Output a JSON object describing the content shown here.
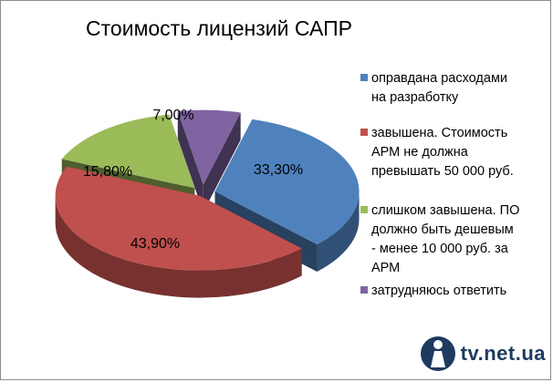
{
  "chart_data": {
    "type": "pie",
    "title": "Стоимость лицензий САПР",
    "categories": [
      "оправдана расходами на разработку",
      "завышена. Стоимость АРМ не должна превышать 50 000 руб.",
      "слишком завышена. ПО должно быть дешевым - менее 10 000 руб. за АРМ",
      "затрудняюсь ответить"
    ],
    "values": [
      33.3,
      43.9,
      15.8,
      7.0
    ],
    "value_labels": [
      "33,30%",
      "43,90%",
      "15,80%",
      "7,00%"
    ],
    "colors": [
      "#4f81bd",
      "#c0504d",
      "#9bbb59",
      "#8064a2"
    ],
    "legend_position": "right",
    "style": "3d-exploded"
  },
  "legend": {
    "lines": [
      [
        "оправдана расходами",
        "на разработку"
      ],
      [
        "завышена. Стоимость",
        "АРМ не должна",
        "превышать 50 000 руб."
      ],
      [
        "слишком завышена. ПО",
        "должно быть дешевым",
        "- менее 10 000 руб. за",
        "АРМ"
      ],
      [
        "затрудняюсь ответить"
      ]
    ]
  },
  "watermark": {
    "text": "tv.net.ua"
  }
}
